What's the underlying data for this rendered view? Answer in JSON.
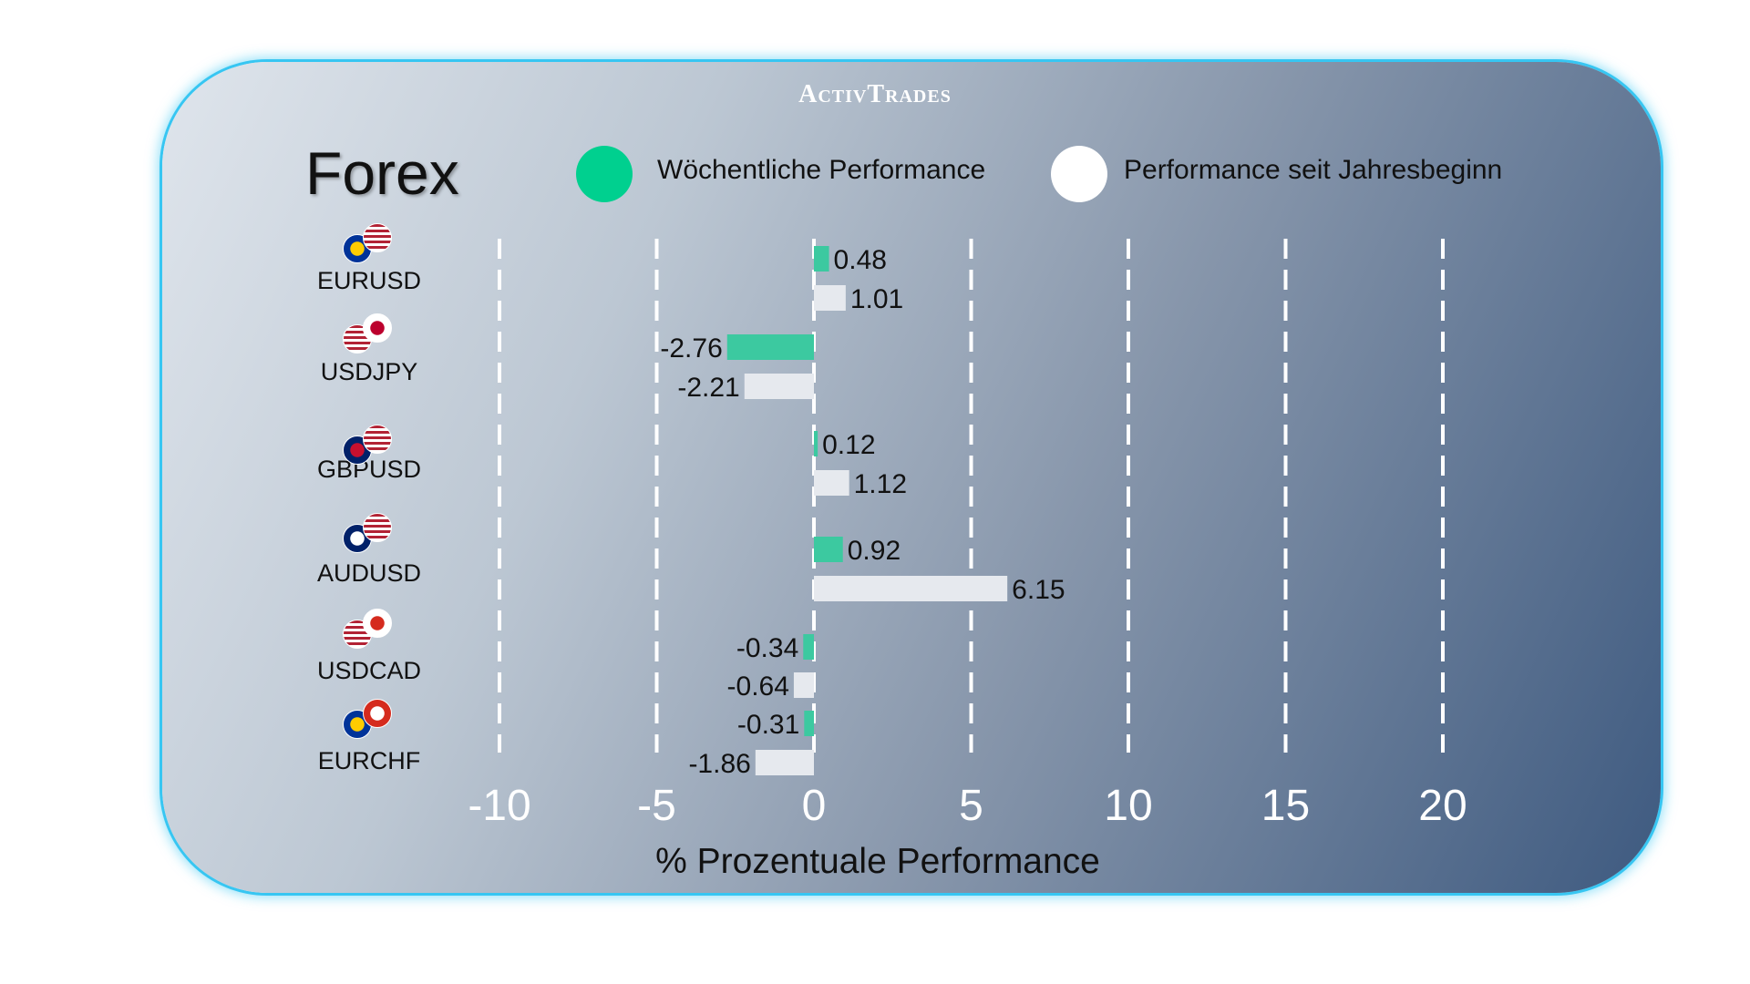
{
  "brand": "ActivTrades",
  "title": "Forex",
  "colors": {
    "weekly": "#3cc9a0",
    "ytd": "#e6e9ee",
    "legend_weekly": "#00d08f",
    "border": "#37c6f2"
  },
  "chart_data": {
    "type": "bar",
    "orientation": "horizontal",
    "categories": [
      "EURUSD",
      "USDJPY",
      "GBPUSD",
      "AUDUSD",
      "USDCAD",
      "EURCHF"
    ],
    "series": [
      {
        "name": "Wöchentliche Performance",
        "values": [
          0.48,
          -2.76,
          0.12,
          0.92,
          -0.34,
          -0.31
        ]
      },
      {
        "name": "Performance seit Jahresbeginn",
        "values": [
          1.01,
          -2.21,
          1.12,
          6.15,
          -0.64,
          -1.86
        ]
      }
    ],
    "xlabel": "% Prozentuale Performance",
    "xlim": [
      -10,
      20
    ],
    "xticks": [
      "-10",
      "-5",
      "0",
      "5",
      "10",
      "15",
      "20"
    ],
    "grid": "vertical dashed",
    "legend": "top"
  }
}
